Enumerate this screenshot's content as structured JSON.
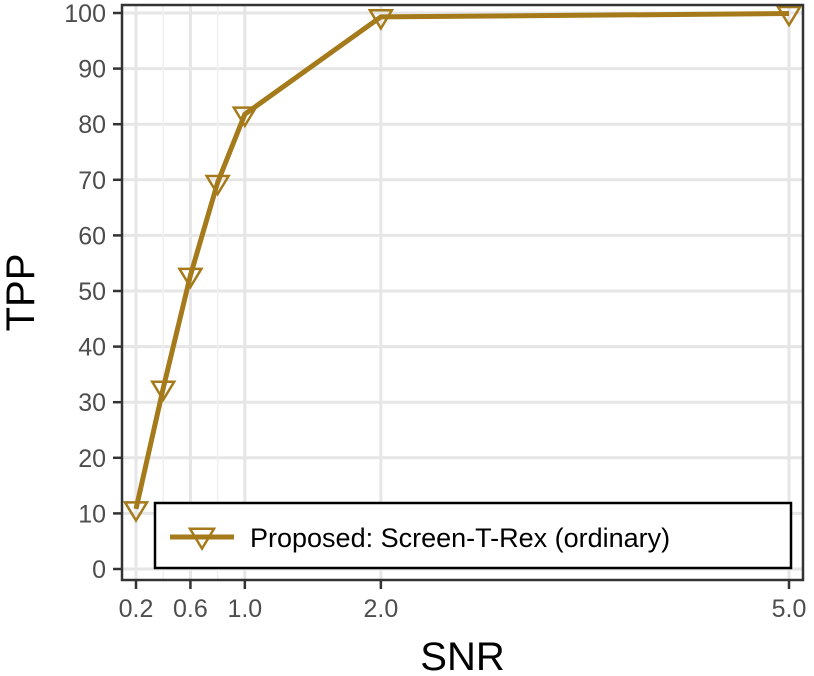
{
  "chart_data": {
    "type": "line",
    "xlabel": "SNR",
    "ylabel": "TPP",
    "x": [
      0.2,
      0.4,
      0.6,
      0.8,
      1.0,
      2.0,
      5.0
    ],
    "x_ticks": [
      {
        "value": 0.2,
        "label": "0.2"
      },
      {
        "value": 0.6,
        "label": "0.6"
      },
      {
        "value": 1.0,
        "label": "1.0"
      },
      {
        "value": 2.0,
        "label": "2.0"
      },
      {
        "value": 5.0,
        "label": "5.0"
      }
    ],
    "x_minor_grid": [
      0.4,
      0.8
    ],
    "y_ticks": [
      0,
      10,
      20,
      30,
      40,
      50,
      60,
      70,
      80,
      90,
      100
    ],
    "xlim": [
      0.2,
      5.0
    ],
    "ylim": [
      0,
      100
    ],
    "series": [
      {
        "name": "Proposed: Screen-T-Rex (ordinary)",
        "color": "#A57A1B",
        "marker": "triangle-down-open",
        "values": [
          10.8,
          32.5,
          52.8,
          69.5,
          81.8,
          99.3,
          99.9
        ]
      }
    ],
    "legend": {
      "placement": "bottom-right",
      "border": true
    },
    "grid": true
  }
}
